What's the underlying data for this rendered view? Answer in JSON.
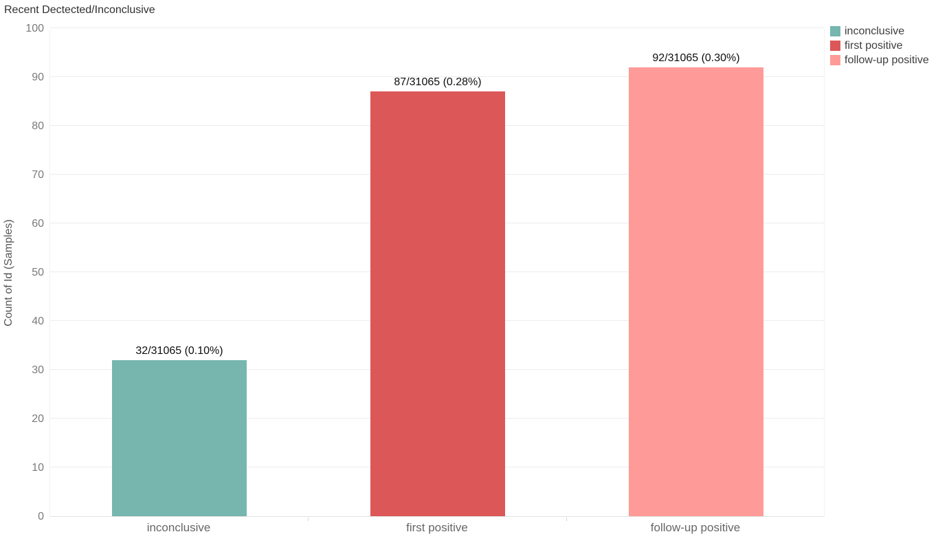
{
  "page": {
    "background_color": "#ffffff"
  },
  "chart_data": {
    "type": "bar",
    "title": "Recent Dectected/Inconclusive",
    "xlabel": "",
    "ylabel": "Count of Id (Samples)",
    "categories": [
      "inconclusive",
      "first positive",
      "follow-up positive"
    ],
    "values": [
      32,
      87,
      92
    ],
    "bar_labels": [
      "32/31065 (0.10%)",
      "87/31065 (0.28%)",
      "92/31065 (0.30%)"
    ],
    "bar_colors": [
      "#76b6af",
      "#dc5757",
      "#fe9b98"
    ],
    "ylim": [
      0,
      100
    ],
    "yticks": [
      0,
      10,
      20,
      30,
      40,
      50,
      60,
      70,
      80,
      90,
      100
    ],
    "grid": true,
    "legend_position": "top-right",
    "legend": [
      {
        "label": "inconclusive",
        "color": "#76b6af"
      },
      {
        "label": "first positive",
        "color": "#dc5757"
      },
      {
        "label": "follow-up positive",
        "color": "#fe9b98"
      }
    ],
    "colors": {
      "gridline": "#ececec",
      "axis_line": "#e2e2e2",
      "tick_text": "#7a7a7a",
      "category_text": "#666666",
      "bar_label_text": "#0d0d0d",
      "title_text": "#2f2f2f"
    }
  }
}
